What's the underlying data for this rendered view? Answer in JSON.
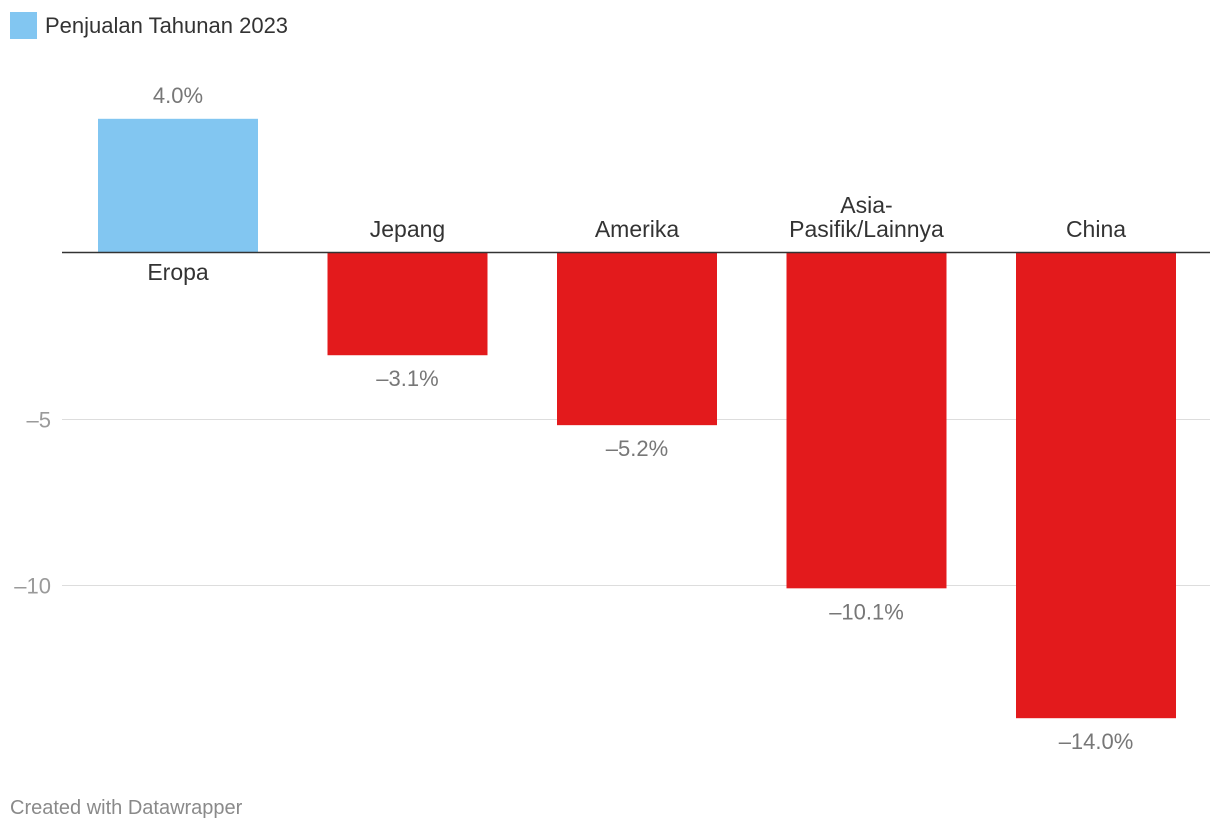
{
  "chart_data": {
    "type": "bar",
    "legend": [
      {
        "name": "Penjualan Tahunan 2023",
        "color": "#82c6f1"
      }
    ],
    "categories": [
      [
        "Eropa"
      ],
      [
        "Jepang"
      ],
      [
        "Amerika"
      ],
      [
        "Asia-",
        "Pasifik/Lainnya"
      ],
      [
        "China"
      ]
    ],
    "values": [
      4.0,
      -3.1,
      -5.2,
      -10.1,
      -14.0
    ],
    "value_labels": [
      "4.0%",
      "–3.1%",
      "–5.2%",
      "–10.1%",
      "–14.0%"
    ],
    "y_ticks": [
      {
        "value": -5,
        "label": "–5"
      },
      {
        "value": -10,
        "label": "–10"
      }
    ],
    "ylim": [
      -14.0,
      4.0
    ],
    "grid": true,
    "colors": {
      "positive": "#82c6f1",
      "negative": "#e31a1c"
    }
  },
  "footer": "Created with Datawrapper"
}
